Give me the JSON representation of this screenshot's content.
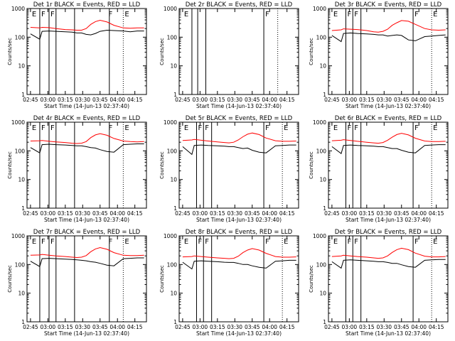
{
  "page": {
    "xtick_labels": [
      "02:45",
      "03:00",
      "03:15",
      "03:30",
      "03:45",
      "04:00",
      "04:15"
    ],
    "ytick_labels": [
      "1",
      "10",
      "100",
      "1000"
    ],
    "ylabel": "Counts/sec",
    "xlabel": "Start Time (14-Jun-13 02:37:40)",
    "marker_letter_e": "E",
    "marker_letter_f": "F"
  },
  "chart_data": [
    {
      "type": "line",
      "title": "Det 1r BLACK = Events, RED = LLD",
      "has_data": true,
      "xlim_minutes": [
        -3,
        100
      ],
      "ylim": [
        1,
        1000
      ],
      "yscale": "log",
      "x_minutes": [
        0,
        8,
        10,
        16,
        22,
        30,
        36,
        40,
        44,
        48,
        52,
        56,
        60,
        66,
        72,
        80,
        86,
        92,
        98
      ],
      "series": [
        {
          "name": "BLACK = Events",
          "color": "#000000",
          "values": [
            130,
            85,
            160,
            165,
            160,
            155,
            150,
            140,
            140,
            125,
            120,
            135,
            160,
            175,
            170,
            165,
            155,
            165,
            165
          ]
        },
        {
          "name": "RED = LLD",
          "color": "#ff0000",
          "values": [
            220,
            210,
            220,
            215,
            200,
            185,
            180,
            175,
            175,
            200,
            280,
            350,
            390,
            340,
            260,
            210,
            205,
            210,
            210
          ]
        }
      ],
      "vlines_solid": [
        8,
        16,
        22,
        38,
        68
      ],
      "vlines_dotted": [
        80
      ],
      "markers": [
        {
          "letter": "E",
          "x": 0
        },
        {
          "letter": "F",
          "x": 8
        },
        {
          "letter": "F",
          "x": 16
        },
        {
          "letter": "F",
          "x": 66
        },
        {
          "letter": "E",
          "x": 80
        }
      ]
    },
    {
      "type": "line",
      "title": "Det 2r BLACK = Events, RED = LLD",
      "has_data": false,
      "xlim_minutes": [
        -3,
        100
      ],
      "ylim": [
        1,
        1000
      ],
      "yscale": "log",
      "x_minutes": [],
      "series": [],
      "vlines_solid": [
        8,
        13,
        20,
        70
      ],
      "vlines_dotted": [
        82
      ],
      "markers": [
        {
          "letter": "E",
          "x": 0
        },
        {
          "letter": "F",
          "x": 70
        }
      ]
    },
    {
      "type": "line",
      "title": "Det 3r BLACK = Events, RED = LLD",
      "has_data": true,
      "xlim_minutes": [
        -3,
        100
      ],
      "ylim": [
        1,
        1000
      ],
      "yscale": "log",
      "x_minutes": [
        0,
        8,
        10,
        16,
        22,
        30,
        36,
        40,
        44,
        48,
        52,
        56,
        60,
        66,
        72,
        80,
        86,
        92,
        98
      ],
      "series": [
        {
          "name": "BLACK = Events",
          "color": "#000000",
          "values": [
            115,
            70,
            135,
            140,
            135,
            130,
            125,
            120,
            120,
            110,
            115,
            120,
            115,
            80,
            75,
            105,
            110,
            115,
            120
          ]
        },
        {
          "name": "RED = LLD",
          "color": "#ff0000",
          "values": [
            170,
            180,
            195,
            190,
            185,
            170,
            155,
            150,
            160,
            190,
            260,
            320,
            380,
            360,
            280,
            200,
            180,
            175,
            180
          ]
        }
      ],
      "vlines_solid": [
        12,
        18,
        25,
        70
      ],
      "vlines_dotted": [
        86
      ],
      "markers": [
        {
          "letter": "E",
          "x": 0
        },
        {
          "letter": "F",
          "x": 12
        },
        {
          "letter": "F",
          "x": 18
        },
        {
          "letter": "F",
          "x": 70
        },
        {
          "letter": "E",
          "x": 86
        }
      ]
    },
    {
      "type": "line",
      "title": "Det 4r BLACK = Events, RED = LLD",
      "has_data": true,
      "xlim_minutes": [
        -3,
        100
      ],
      "ylim": [
        1,
        1000
      ],
      "yscale": "log",
      "x_minutes": [
        0,
        8,
        10,
        16,
        22,
        30,
        36,
        40,
        44,
        48,
        52,
        56,
        60,
        66,
        72,
        80,
        86,
        92,
        98
      ],
      "series": [
        {
          "name": "BLACK = Events",
          "color": "#000000",
          "values": [
            130,
            85,
            165,
            170,
            165,
            160,
            155,
            150,
            150,
            140,
            130,
            125,
            110,
            95,
            90,
            165,
            170,
            175,
            175
          ]
        },
        {
          "name": "RED = LLD",
          "color": "#ff0000",
          "values": [
            220,
            225,
            230,
            215,
            205,
            195,
            185,
            180,
            185,
            210,
            290,
            360,
            400,
            350,
            270,
            220,
            210,
            205,
            210
          ]
        }
      ],
      "vlines_solid": [
        8,
        16,
        22,
        38,
        68
      ],
      "vlines_dotted": [
        80
      ],
      "markers": [
        {
          "letter": "E",
          "x": 0
        },
        {
          "letter": "F",
          "x": 8
        },
        {
          "letter": "F",
          "x": 16
        },
        {
          "letter": "F",
          "x": 66
        },
        {
          "letter": "E",
          "x": 80
        }
      ]
    },
    {
      "type": "line",
      "title": "Det 5r BLACK = Events, RED = LLD",
      "has_data": true,
      "xlim_minutes": [
        -3,
        100
      ],
      "ylim": [
        1,
        1000
      ],
      "yscale": "log",
      "x_minutes": [
        0,
        8,
        10,
        16,
        22,
        30,
        36,
        40,
        44,
        48,
        52,
        56,
        60,
        66,
        72,
        80,
        86,
        92,
        98
      ],
      "series": [
        {
          "name": "BLACK = Events",
          "color": "#000000",
          "values": [
            140,
            75,
            155,
            160,
            155,
            150,
            145,
            140,
            140,
            130,
            120,
            125,
            105,
            90,
            85,
            150,
            155,
            160,
            160
          ]
        },
        {
          "name": "RED = LLD",
          "color": "#ff0000",
          "values": [
            230,
            240,
            250,
            235,
            220,
            205,
            195,
            190,
            200,
            240,
            310,
            380,
            420,
            370,
            280,
            225,
            215,
            215,
            220
          ]
        }
      ],
      "vlines_solid": [
        12,
        18,
        25,
        70
      ],
      "vlines_dotted": [
        86
      ],
      "markers": [
        {
          "letter": "E",
          "x": 0
        },
        {
          "letter": "F",
          "x": 12
        },
        {
          "letter": "F",
          "x": 18
        },
        {
          "letter": "F",
          "x": 70
        },
        {
          "letter": "E",
          "x": 86
        }
      ]
    },
    {
      "type": "line",
      "title": "Det 6r BLACK = Events, RED = LLD",
      "has_data": true,
      "xlim_minutes": [
        -3,
        100
      ],
      "ylim": [
        1,
        1000
      ],
      "yscale": "log",
      "x_minutes": [
        0,
        8,
        10,
        16,
        22,
        30,
        36,
        40,
        44,
        48,
        52,
        56,
        60,
        66,
        72,
        80,
        86,
        92,
        98
      ],
      "series": [
        {
          "name": "BLACK = Events",
          "color": "#000000",
          "values": [
            140,
            80,
            155,
            160,
            155,
            150,
            145,
            140,
            140,
            130,
            120,
            120,
            105,
            90,
            85,
            155,
            160,
            165,
            165
          ]
        },
        {
          "name": "RED = LLD",
          "color": "#ff0000",
          "values": [
            225,
            235,
            245,
            230,
            215,
            200,
            190,
            185,
            195,
            235,
            300,
            370,
            410,
            360,
            275,
            220,
            210,
            210,
            215
          ]
        }
      ],
      "vlines_solid": [
        12,
        18,
        25,
        70
      ],
      "vlines_dotted": [
        86
      ],
      "markers": [
        {
          "letter": "E",
          "x": 0
        },
        {
          "letter": "F",
          "x": 12
        },
        {
          "letter": "F",
          "x": 18
        },
        {
          "letter": "F",
          "x": 70
        },
        {
          "letter": "E",
          "x": 86
        }
      ]
    },
    {
      "type": "line",
      "title": "Det 7r BLACK = Events, RED = LLD",
      "has_data": true,
      "xlim_minutes": [
        -3,
        100
      ],
      "ylim": [
        1,
        1000
      ],
      "yscale": "log",
      "x_minutes": [
        0,
        8,
        10,
        16,
        22,
        30,
        36,
        40,
        44,
        48,
        52,
        56,
        60,
        66,
        72,
        80,
        86,
        92,
        98
      ],
      "series": [
        {
          "name": "BLACK = Events",
          "color": "#000000",
          "values": [
            130,
            85,
            160,
            165,
            160,
            155,
            150,
            145,
            140,
            135,
            125,
            120,
            110,
            95,
            90,
            160,
            165,
            170,
            170
          ]
        },
        {
          "name": "RED = LLD",
          "color": "#ff0000",
          "values": [
            210,
            215,
            225,
            210,
            200,
            190,
            180,
            175,
            180,
            205,
            280,
            350,
            390,
            340,
            260,
            210,
            205,
            205,
            210
          ]
        }
      ],
      "vlines_solid": [
        8,
        16,
        22,
        38,
        68
      ],
      "vlines_dotted": [
        80
      ],
      "markers": [
        {
          "letter": "E",
          "x": 0
        },
        {
          "letter": "F",
          "x": 8
        },
        {
          "letter": "F",
          "x": 16
        },
        {
          "letter": "F",
          "x": 66
        },
        {
          "letter": "E",
          "x": 80
        }
      ]
    },
    {
      "type": "line",
      "title": "Det 8r BLACK = Events, RED = LLD",
      "has_data": true,
      "xlim_minutes": [
        -3,
        100
      ],
      "ylim": [
        1,
        1000
      ],
      "yscale": "log",
      "x_minutes": [
        0,
        8,
        10,
        16,
        22,
        30,
        36,
        40,
        44,
        48,
        52,
        56,
        60,
        66,
        72,
        80,
        86,
        92,
        98
      ],
      "series": [
        {
          "name": "BLACK = Events",
          "color": "#000000",
          "values": [
            120,
            70,
            130,
            135,
            130,
            125,
            120,
            118,
            118,
            110,
            100,
            100,
            90,
            80,
            75,
            130,
            135,
            140,
            140
          ]
        },
        {
          "name": "RED = LLD",
          "color": "#ff0000",
          "values": [
            185,
            190,
            200,
            190,
            180,
            170,
            165,
            160,
            165,
            195,
            260,
            320,
            360,
            320,
            245,
            190,
            180,
            180,
            185
          ]
        }
      ],
      "vlines_solid": [
        12,
        18,
        25,
        70
      ],
      "vlines_dotted": [
        86
      ],
      "markers": [
        {
          "letter": "E",
          "x": 0
        },
        {
          "letter": "F",
          "x": 12
        },
        {
          "letter": "F",
          "x": 18
        },
        {
          "letter": "F",
          "x": 70
        },
        {
          "letter": "E",
          "x": 86
        }
      ]
    },
    {
      "type": "line",
      "title": "Det 9r BLACK = Events, RED = LLD",
      "has_data": true,
      "xlim_minutes": [
        -3,
        100
      ],
      "ylim": [
        1,
        1000
      ],
      "yscale": "log",
      "x_minutes": [
        0,
        8,
        10,
        16,
        22,
        30,
        36,
        40,
        44,
        48,
        52,
        56,
        60,
        66,
        72,
        80,
        86,
        92,
        98
      ],
      "series": [
        {
          "name": "BLACK = Events",
          "color": "#000000",
          "values": [
            125,
            75,
            140,
            145,
            140,
            135,
            130,
            125,
            125,
            118,
            110,
            110,
            98,
            85,
            80,
            140,
            145,
            150,
            150
          ]
        },
        {
          "name": "RED = LLD",
          "color": "#ff0000",
          "values": [
            190,
            200,
            210,
            200,
            190,
            180,
            170,
            165,
            170,
            200,
            265,
            330,
            370,
            330,
            250,
            195,
            185,
            185,
            190
          ]
        }
      ],
      "vlines_solid": [
        12,
        18,
        25,
        70
      ],
      "vlines_dotted": [
        86
      ],
      "markers": [
        {
          "letter": "E",
          "x": 0
        },
        {
          "letter": "F",
          "x": 12
        },
        {
          "letter": "F",
          "x": 18
        },
        {
          "letter": "F",
          "x": 70
        },
        {
          "letter": "E",
          "x": 86
        }
      ]
    }
  ]
}
